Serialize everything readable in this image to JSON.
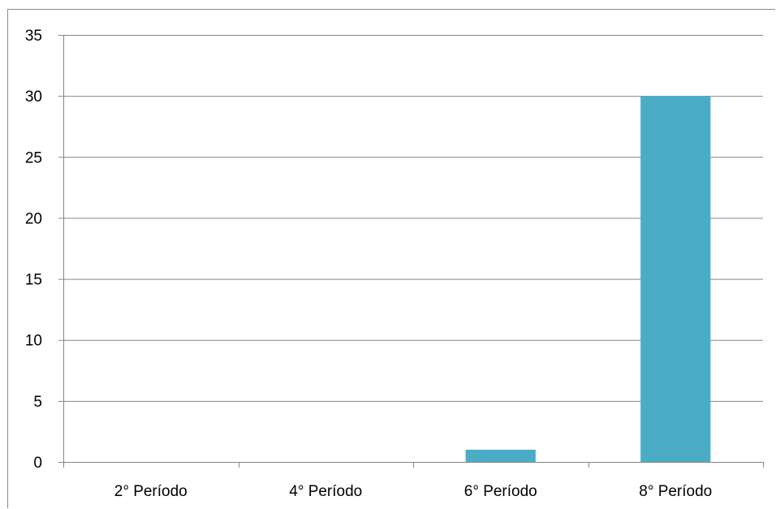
{
  "chart_data": {
    "type": "bar",
    "categories": [
      "2° Período",
      "4° Período",
      "6° Período",
      "8° Período"
    ],
    "values": [
      0,
      0,
      1,
      30
    ],
    "title": "",
    "xlabel": "",
    "ylabel": "",
    "ylim": [
      0,
      35
    ],
    "yticks": [
      "0",
      "5",
      "10",
      "15",
      "20",
      "25",
      "30",
      "35"
    ],
    "grid": true,
    "legend": "none",
    "colors": {
      "bar": "#4bacc6",
      "gridline": "#868686",
      "axis": "#868686",
      "frame": "#8c8c8c"
    }
  }
}
